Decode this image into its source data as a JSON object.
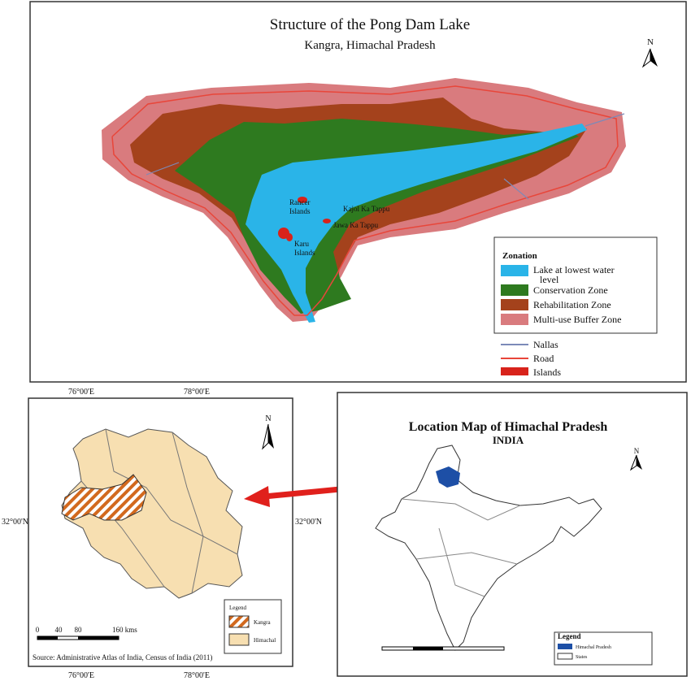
{
  "top_map": {
    "title": "Structure of the Pong Dam Lake",
    "subtitle": "Kangra, Himachal Pradesh",
    "north": "N",
    "labels": {
      "rancer": [
        "Rancer",
        "Islands"
      ],
      "kajol": "Kajol Ka Tappu",
      "jawa": "Jawa Ka Tappu",
      "karu": [
        "Karu",
        "Islands"
      ]
    },
    "legend": {
      "title": "Zonation",
      "items": [
        [
          "Lake at lowest water",
          "level"
        ],
        [
          "Conservation Zone"
        ],
        [
          "Rehabilitation Zone"
        ],
        [
          "Multi-use Buffer Zone"
        ]
      ]
    },
    "line_legend": [
      "Nallas",
      "Road",
      "Islands"
    ]
  },
  "inset_map": {
    "longitudes": [
      "76°00'E",
      "78°00'E"
    ],
    "latitude": "32°00'N",
    "north": "N",
    "scale": [
      "0",
      "40",
      "80",
      "160 kms"
    ],
    "legend": {
      "title": "Legend",
      "items": [
        "Kangra",
        "Himachal"
      ]
    },
    "source": "Source: Administrative Atlas of India, Census of India (2011)"
  },
  "india_map": {
    "title": "Location Map of Himachal Pradesh",
    "subtitle": "INDIA",
    "north": "N",
    "legend": {
      "title": "Legend",
      "items": [
        "Himachal Pradesh",
        "States"
      ]
    }
  }
}
